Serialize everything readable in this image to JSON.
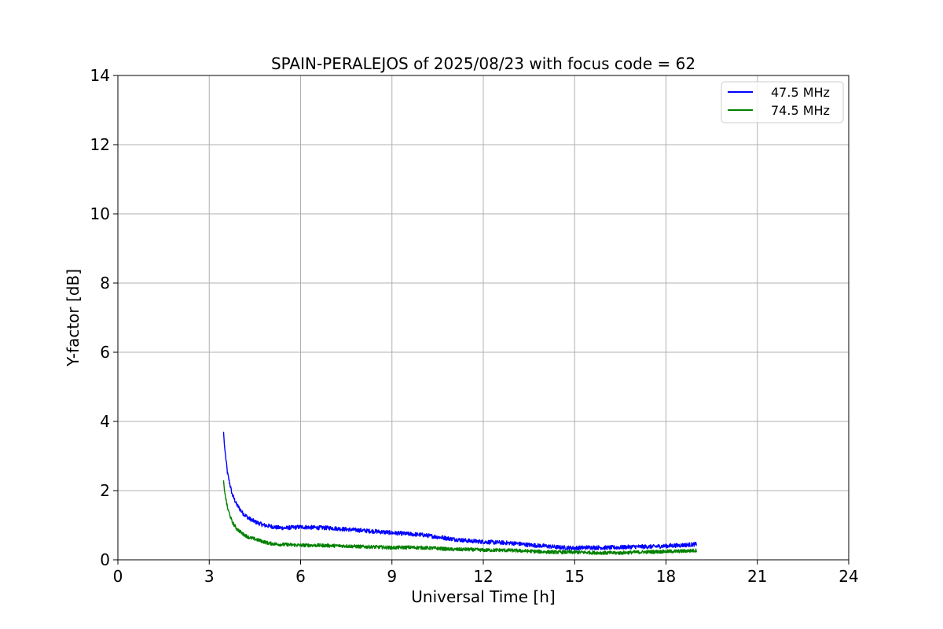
{
  "chart_data": {
    "type": "line",
    "title": "SPAIN-PERALEJOS of 2025/08/23 with focus code = 62",
    "xlabel": "Universal Time [h]",
    "ylabel": "Y-factor [dB]",
    "xlim": [
      0,
      24
    ],
    "ylim": [
      0,
      14
    ],
    "xticks": [
      0,
      3,
      6,
      9,
      12,
      15,
      18,
      21,
      24
    ],
    "yticks": [
      0,
      2,
      4,
      6,
      8,
      10,
      12,
      14
    ],
    "grid": true,
    "legend_position": "top-right",
    "series": [
      {
        "name": "47.5 MHz",
        "color": "#0000ff",
        "noise_amplitude": 0.12,
        "x": [
          3.47,
          3.5,
          3.6,
          3.75,
          3.9,
          4.1,
          4.3,
          4.5,
          4.8,
          4.95,
          5.25,
          5.5,
          6.0,
          6.5,
          7.0,
          7.5,
          8.0,
          8.5,
          9.0,
          9.5,
          10.0,
          10.5,
          11.0,
          11.5,
          12.0,
          12.5,
          13.0,
          13.5,
          14.0,
          14.5,
          15.0,
          15.5,
          16.0,
          16.5,
          17.0,
          17.5,
          18.0,
          18.5,
          19.0
        ],
        "y": [
          3.7,
          3.3,
          2.5,
          1.9,
          1.6,
          1.35,
          1.2,
          1.1,
          1.0,
          0.98,
          0.93,
          0.92,
          0.95,
          0.93,
          0.92,
          0.88,
          0.85,
          0.82,
          0.78,
          0.75,
          0.72,
          0.66,
          0.6,
          0.55,
          0.52,
          0.5,
          0.48,
          0.43,
          0.4,
          0.36,
          0.34,
          0.36,
          0.35,
          0.36,
          0.38,
          0.38,
          0.4,
          0.42,
          0.45
        ]
      },
      {
        "name": "74.5 MHz",
        "color": "#008000",
        "noise_amplitude": 0.1,
        "x": [
          3.47,
          3.5,
          3.6,
          3.75,
          3.9,
          4.1,
          4.3,
          4.5,
          4.8,
          4.95,
          5.25,
          5.5,
          6.0,
          6.5,
          7.0,
          7.5,
          8.0,
          8.5,
          9.0,
          9.5,
          10.0,
          10.5,
          11.0,
          11.5,
          12.0,
          12.5,
          13.0,
          13.5,
          14.0,
          14.5,
          15.0,
          15.5,
          16.0,
          16.5,
          17.0,
          17.5,
          18.0,
          18.5,
          19.0
        ],
        "y": [
          2.3,
          2.0,
          1.5,
          1.1,
          0.9,
          0.75,
          0.65,
          0.6,
          0.52,
          0.48,
          0.45,
          0.44,
          0.42,
          0.42,
          0.41,
          0.4,
          0.38,
          0.37,
          0.35,
          0.36,
          0.35,
          0.33,
          0.3,
          0.3,
          0.28,
          0.28,
          0.27,
          0.25,
          0.23,
          0.22,
          0.22,
          0.21,
          0.2,
          0.2,
          0.22,
          0.23,
          0.24,
          0.25,
          0.27
        ]
      }
    ]
  }
}
